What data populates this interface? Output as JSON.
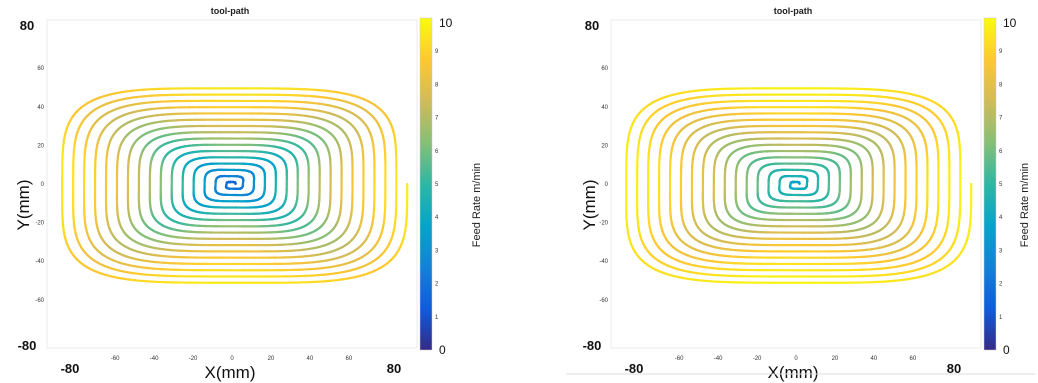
{
  "colormap": [
    "#352a87",
    "#0f5cdd",
    "#1481d6",
    "#06a4ca",
    "#2eb7a4",
    "#87bf77",
    "#d1bb59",
    "#fec832",
    "#f9fb0e"
  ],
  "chart_data": [
    {
      "type": "line",
      "title": "tool-path",
      "xlabel": "X(mm)",
      "ylabel": "Y(mm)",
      "colorbar_label": "Feed Rate m/min",
      "colorbar_range": [
        0,
        10
      ],
      "colorbar_ticks": [
        "0",
        "1",
        "2",
        "3",
        "4",
        "5",
        "6",
        "7",
        "8",
        "9",
        "10"
      ],
      "xlim": [
        -95,
        95
      ],
      "ylim": [
        -85,
        85
      ],
      "x_ticks": [
        "-80",
        "-60",
        "-40",
        "-20",
        "0",
        "20",
        "40",
        "60",
        "80"
      ],
      "y_ticks": [
        "80",
        "60",
        "40",
        "20",
        "0",
        "-20",
        "-40",
        "-60",
        "-80"
      ],
      "path": {
        "shape": "rounded-rectangular spiral centered at origin",
        "center": [
          0,
          0
        ],
        "outer_half_width_x": 90,
        "outer_half_height_y": 52,
        "loops": 16,
        "feed_rate_center": 1.5,
        "feed_rate_outer": 8.8,
        "feed_rate_straight_edges": 9.6
      }
    },
    {
      "type": "line",
      "title": "tool-path",
      "xlabel": "X(mm)",
      "ylabel": "Y(mm)",
      "colorbar_label": "Feed Rate m/min",
      "colorbar_range": [
        0,
        10
      ],
      "colorbar_ticks": [
        "0",
        "1",
        "2",
        "3",
        "4",
        "5",
        "6",
        "7",
        "8",
        "9",
        "10"
      ],
      "xlim": [
        -95,
        95
      ],
      "ylim": [
        -85,
        85
      ],
      "x_ticks": [
        "-80",
        "-60",
        "-40",
        "-20",
        "0",
        "20",
        "40",
        "60",
        "80"
      ],
      "y_ticks": [
        "80",
        "60",
        "40",
        "20",
        "0",
        "-20",
        "-40",
        "-60",
        "-80"
      ],
      "path": {
        "shape": "rounded-rectangular spiral centered at origin",
        "center": [
          0,
          0
        ],
        "outer_half_width_x": 90,
        "outer_half_height_y": 52,
        "loops": 16,
        "feed_rate_center": 3.6,
        "feed_rate_outer": 9.4,
        "feed_rate_straight_edges": 9.8
      }
    }
  ]
}
